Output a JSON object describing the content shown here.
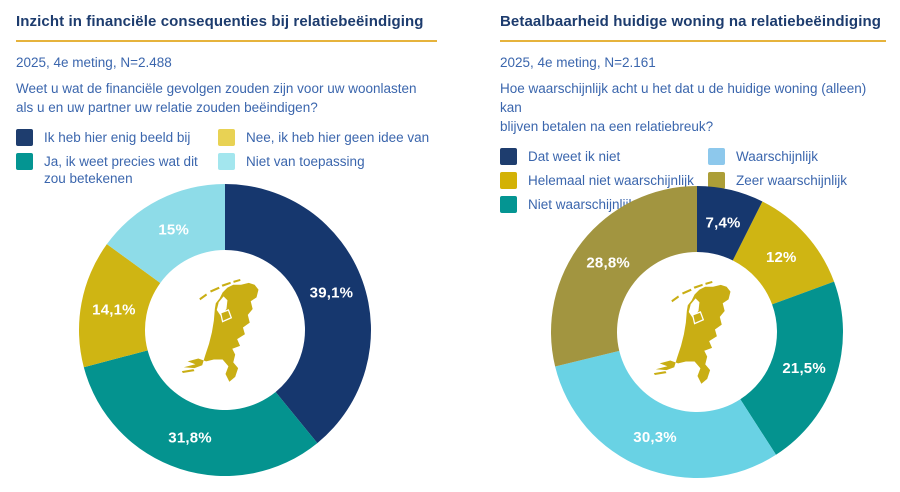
{
  "page": {
    "background": "#ffffff",
    "accent_line_color": "#e6b33c"
  },
  "panels": [
    {
      "title": "Inzicht in financiële consequenties bij relatiebeëindiging",
      "subtitle": "2025, 4e meting, N=2.488",
      "question": "Weet u wat de financiële gevolgen zouden zijn voor uw woonlasten\nals u en uw partner uw relatie zouden beëindigen?",
      "legend_columns": [
        [
          {
            "label": "Ik heb hier enig beeld bij",
            "swatch_color": "#1e3d6e"
          },
          {
            "label": "Ja, ik weet precies wat dit\nzou betekenen",
            "swatch_color": "#049592"
          }
        ],
        [
          {
            "label": "Nee, ik heb hier geen idee van",
            "swatch_color": "#e8d254"
          },
          {
            "label": "Niet van toepassing",
            "swatch_color": "#a3e6ee"
          }
        ]
      ]
    },
    {
      "title": "Betaalbaarheid huidige woning na relatiebeëindiging",
      "subtitle": "2025, 4e meting, N=2.161",
      "question": "Hoe waarschijnlijk acht u het dat u de huidige woning (alleen) kan\nblijven betalen na een relatiebreuk?",
      "legend_columns": [
        [
          {
            "label": "Dat weet ik niet",
            "swatch_color": "#1e3d6e"
          },
          {
            "label": "Helemaal niet waarschijnlijk",
            "swatch_color": "#d3b206"
          },
          {
            "label": "Niet waarschijnlijk",
            "swatch_color": "#049592"
          }
        ],
        [
          {
            "label": "Waarschijnlijk",
            "swatch_color": "#8dc8ec"
          },
          {
            "label": "Zeer waarschijnlijk",
            "swatch_color": "#ac9e37"
          }
        ]
      ]
    }
  ],
  "chart_data": [
    {
      "type": "pie",
      "variant": "donut",
      "title": "Inzicht in financiële consequenties bij relatiebeëindiging",
      "subtitle": "2025, 4e meting, N=2.488",
      "labels": [
        "Ik heb hier enig beeld bij",
        "Ja, ik weet precies wat dit zou betekenen",
        "Nee, ik heb hier geen idee van",
        "Niet van toepassing"
      ],
      "values": [
        39.1,
        31.8,
        14.1,
        15
      ],
      "display_values": [
        "39,1%",
        "31,8%",
        "14,1%",
        "15%"
      ],
      "colors": [
        "#16376e",
        "#04938f",
        "#cfb513",
        "#8edce8"
      ],
      "start_angle_deg": 0,
      "direction": "clockwise",
      "legend_position": "top",
      "center_icon": "netherlands-map",
      "center_icon_color": "#c9ae14"
    },
    {
      "type": "pie",
      "variant": "donut",
      "title": "Betaalbaarheid huidige woning na relatiebeëindiging",
      "subtitle": "2025, 4e meting, N=2.161",
      "labels": [
        "Dat weet ik niet",
        "Helemaal niet waarschijnlijk",
        "Niet waarschijnlijk",
        "Waarschijnlijk",
        "Zeer waarschijnlijk"
      ],
      "values": [
        7.4,
        12,
        21.5,
        30.3,
        28.8
      ],
      "display_values": [
        "7,4%",
        "12%",
        "21,5%",
        "30,3%",
        "28,8%"
      ],
      "colors": [
        "#16376e",
        "#cfb513",
        "#04938f",
        "#69d2e4",
        "#a29540"
      ],
      "start_angle_deg": 0,
      "direction": "clockwise",
      "legend_position": "top",
      "center_icon": "netherlands-map",
      "center_icon_color": "#c9ae14"
    }
  ]
}
